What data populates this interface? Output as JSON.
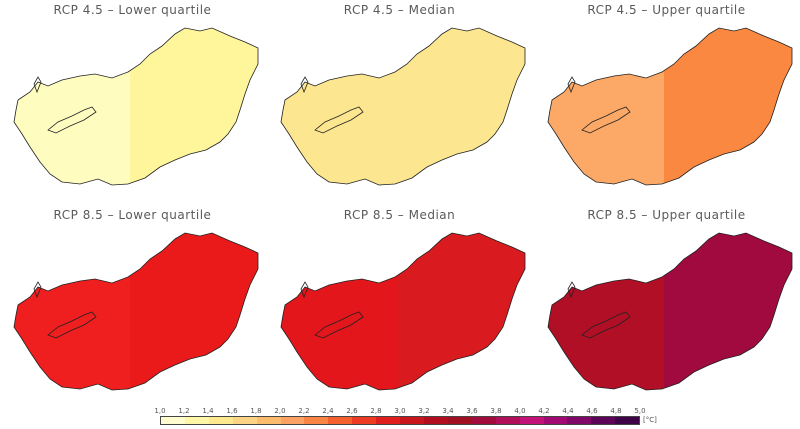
{
  "panels": [
    {
      "title": "RCP 4.5 – Lower quartile",
      "base": "#fffcc0",
      "accent": "#fff59a"
    },
    {
      "title": "RCP 4.5 – Median",
      "base": "#fde690",
      "accent": "#fde690"
    },
    {
      "title": "RCP 4.5 – Upper quartile",
      "base": "#fca867",
      "accent": "#fb8841"
    },
    {
      "title": "RCP 8.5 – Lower quartile",
      "base": "#ef1e1f",
      "accent": "#ea1a1a"
    },
    {
      "title": "RCP 8.5 – Median",
      "base": "#e3161c",
      "accent": "#d91a1f"
    },
    {
      "title": "RCP 8.5 – Upper quartile",
      "base": "#b10f26",
      "accent": "#a00a3e"
    }
  ],
  "legend": {
    "ticks": [
      "1,0",
      "1,2",
      "1,4",
      "1,6",
      "1,8",
      "2,0",
      "2,2",
      "2,4",
      "2,6",
      "2,8",
      "3,0",
      "3,2",
      "3,4",
      "3,6",
      "3,8",
      "4,0",
      "4,2",
      "4,4",
      "4,6",
      "4,8",
      "5,0"
    ],
    "colors": [
      "#fffccf",
      "#fff7a8",
      "#fee98e",
      "#fdd486",
      "#fcbc6e",
      "#fca264",
      "#fb8544",
      "#f4612e",
      "#ed3b24",
      "#e01e1e",
      "#c9151c",
      "#b30e1f",
      "#a01022",
      "#a10c3d",
      "#b0105a",
      "#c31278",
      "#a00a72",
      "#7f0868",
      "#5c0558",
      "#3d0346"
    ],
    "unit": "[°C]"
  }
}
